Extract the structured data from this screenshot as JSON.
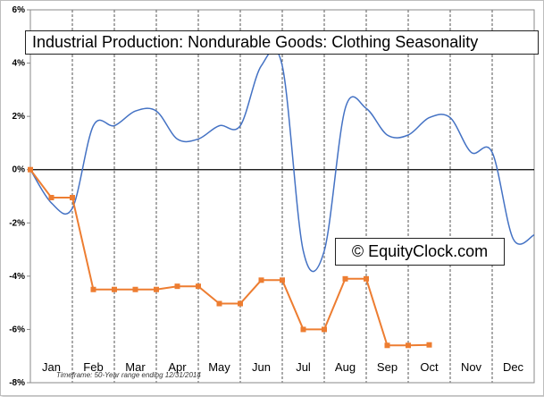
{
  "chart_data": {
    "type": "line",
    "title": "Industrial Production: Nondurable Goods: Clothing Seasonality",
    "watermark": "© EquityClock.com",
    "footnote": "Timeframe: 50-Year range ending 12/31/2014",
    "ylim": [
      -8,
      6
    ],
    "yticks": [
      "6%",
      "4%",
      "2%",
      "0%",
      "-2%",
      "-4%",
      "-6%",
      "-8%"
    ],
    "ytick_values": [
      6,
      4,
      2,
      0,
      -2,
      -4,
      -6,
      -8
    ],
    "months": [
      "Jan",
      "Feb",
      "Mar",
      "Apr",
      "May",
      "Jun",
      "Jul",
      "Aug",
      "Sep",
      "Oct",
      "Nov",
      "Dec"
    ],
    "series": [
      {
        "color": "#4472c4",
        "style": "smooth",
        "x": [
          0,
          0.5,
          1.0,
          1.5,
          2.0,
          2.5,
          3.0,
          3.5,
          4.0,
          4.5,
          5.0,
          5.5,
          6.0,
          6.5,
          7.0,
          7.5,
          8.0,
          8.5,
          9.0,
          9.5,
          10.0,
          10.5,
          11.0,
          11.5,
          12.0
        ],
        "values": [
          0.0,
          -1.25,
          -1.45,
          1.65,
          1.65,
          2.2,
          2.2,
          1.15,
          1.15,
          1.65,
          1.65,
          3.9,
          3.9,
          -3.05,
          -3.05,
          2.3,
          2.3,
          1.3,
          1.3,
          1.95,
          1.95,
          0.65,
          0.65,
          -2.6,
          -2.45
        ]
      },
      {
        "color": "#ed7d31",
        "style": "line-markers",
        "x": [
          0,
          0.5,
          1.0,
          1.5,
          2.0,
          2.5,
          3.0,
          3.5,
          4.0,
          4.5,
          5.0,
          5.5,
          6.0,
          6.5,
          7.0,
          7.5,
          8.0,
          8.5,
          9.0,
          9.5
        ],
        "values": [
          0.0,
          -1.05,
          -1.05,
          -4.5,
          -4.5,
          -4.5,
          -4.5,
          -4.38,
          -4.38,
          -5.03,
          -5.03,
          -4.15,
          -4.15,
          -6.0,
          -6.0,
          -4.1,
          -4.1,
          -6.6,
          -6.6,
          -6.58
        ]
      }
    ]
  }
}
